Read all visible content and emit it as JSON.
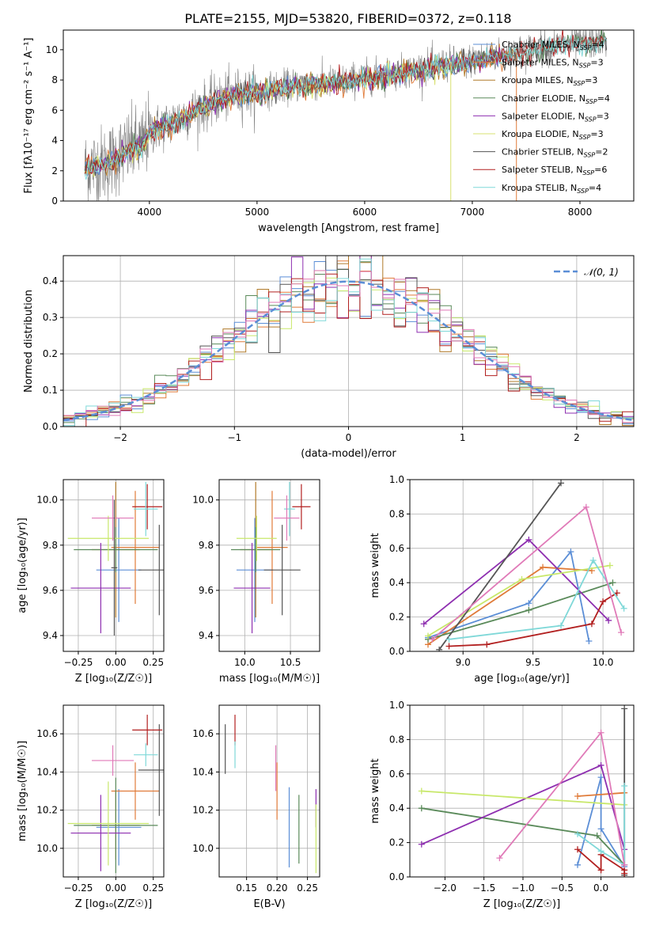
{
  "figure_title": "PLATE=2155, MJD=53820, FIBERID=0372, z=0.118",
  "colors": {
    "chabrier_miles": "#5b8ed6",
    "salpeter_miles": "#e07b39",
    "kroupa_miles": "#b07a2a",
    "chabrier_elodie": "#5a8a5a",
    "salpeter_elodie": "#8e2fb0",
    "kroupa_elodie": "#d8e070",
    "chabrier_stelib": "#555555",
    "salpeter_stelib": "#b22020",
    "kroupa_stelib": "#7fd8d8",
    "pink": "#e07ab8",
    "lime": "#c8e86a",
    "data_gray": "#808080",
    "gauss": "#5b8ed6"
  },
  "chart_data": [
    {
      "id": "spectrum",
      "type": "line",
      "title": "PLATE=2155, MJD=53820, FIBERID=0372, z=0.118",
      "xlabel": "wavelength [Angstrom, rest frame]",
      "ylabel": "Flux [fλ10⁻¹⁷ erg cm⁻² s⁻¹ A⁻¹]",
      "xlim": [
        3200,
        8500
      ],
      "ylim": [
        0,
        11.3
      ],
      "xticks": [
        4000,
        5000,
        6000,
        7000,
        8000
      ],
      "yticks": [
        0,
        2,
        4,
        6,
        8,
        10
      ],
      "legend_position": "right",
      "legend": [
        "Chabrier MILES, N_SSP=4",
        "Salpeter MILES, N_SSP=3",
        "Kroupa MILES, N_SSP=3",
        "Chabrier ELODIE, N_SSP=4",
        "Salpeter ELODIE, N_SSP=3",
        "Kroupa ELODIE, N_SSP=3",
        "Chabrier STELIB, N_SSP=2",
        "Salpeter STELIB, N_SSP=6",
        "Kroupa STELIB, N_SSP=4"
      ],
      "continuum": [
        [
          3400,
          2.2
        ],
        [
          3600,
          2.5
        ],
        [
          3800,
          3.4
        ],
        [
          3950,
          3.8
        ],
        [
          4000,
          4.6
        ],
        [
          4200,
          5.2
        ],
        [
          4400,
          5.9
        ],
        [
          4600,
          6.6
        ],
        [
          4800,
          7.1
        ],
        [
          5000,
          7.2
        ],
        [
          5200,
          7.5
        ],
        [
          5400,
          7.7
        ],
        [
          5600,
          7.8
        ],
        [
          5800,
          7.9
        ],
        [
          6000,
          8.2
        ],
        [
          6200,
          8.4
        ],
        [
          6400,
          8.6
        ],
        [
          6600,
          8.9
        ],
        [
          6800,
          9.1
        ],
        [
          7000,
          9.3
        ],
        [
          7200,
          9.6
        ],
        [
          7400,
          9.8
        ],
        [
          7600,
          10.1
        ],
        [
          7800,
          10.3
        ],
        [
          8000,
          10.4
        ],
        [
          8200,
          10.6
        ]
      ]
    },
    {
      "id": "residuals",
      "type": "line",
      "xlabel": "(data-model)/error",
      "ylabel": "Normed distribution",
      "xlim": [
        -2.5,
        2.5
      ],
      "ylim": [
        0,
        0.47
      ],
      "xticks": [
        -2,
        -1,
        0,
        1,
        2
      ],
      "yticks": [
        0.0,
        0.1,
        0.2,
        0.3,
        0.4
      ],
      "grid": true,
      "legend_position": "top-right",
      "legend": [
        "𝒩(0, 1)"
      ]
    },
    {
      "id": "age_vs_Z",
      "type": "scatter",
      "xlabel": "Z [log₁₀(Z/Z☉)]",
      "ylabel": "age  [log₁₀(age/yr)]",
      "xlim": [
        -0.35,
        0.32
      ],
      "ylim": [
        9.33,
        10.09
      ],
      "xticks": [
        -0.25,
        0.0,
        0.25
      ],
      "yticks": [
        9.4,
        9.6,
        9.8,
        10.0
      ],
      "grid": true,
      "points": [
        {
          "c": "chabrier_miles",
          "x": 0.02,
          "y": 9.69,
          "ex": 0.15,
          "ey": 0.23
        },
        {
          "c": "salpeter_miles",
          "x": 0.13,
          "y": 9.79,
          "ex": 0.16,
          "ey": 0.25
        },
        {
          "c": "kroupa_miles",
          "x": 0.0,
          "y": 9.78,
          "ex": 0.16,
          "ey": 0.3
        },
        {
          "c": "chabrier_elodie",
          "x": 0.0,
          "y": 9.78,
          "ex": 0.28,
          "ey": 0.1
        },
        {
          "c": "salpeter_elodie",
          "x": -0.1,
          "y": 9.61,
          "ex": 0.2,
          "ey": 0.2
        },
        {
          "c": "lime",
          "x": -0.05,
          "y": 9.83,
          "ex": 0.27,
          "ey": 0.1
        },
        {
          "c": "chabrier_stelib",
          "x": 0.29,
          "y": 9.69,
          "ex": 0.14,
          "ey": 0.2
        },
        {
          "c": "salpeter_stelib",
          "x": 0.21,
          "y": 9.97,
          "ex": 0.1,
          "ey": 0.1
        },
        {
          "c": "kroupa_stelib",
          "x": 0.2,
          "y": 9.96,
          "ex": 0.08,
          "ey": 0.12
        },
        {
          "c": "pink",
          "x": -0.02,
          "y": 9.92,
          "ex": 0.14,
          "ey": 0.1
        },
        {
          "c": "chabrier_stelib",
          "x": -0.01,
          "y": 9.7,
          "ex": 0.02,
          "ey": 0.3
        }
      ]
    },
    {
      "id": "age_vs_mass",
      "type": "scatter",
      "xlabel": "mass [log₁₀(M/M☉)]",
      "xlim": [
        9.72,
        10.82
      ],
      "ylim": [
        9.33,
        10.09
      ],
      "xticks": [
        10.0,
        10.5
      ],
      "yticks": [
        9.4,
        9.6,
        9.8,
        10.0
      ],
      "grid": true,
      "points": [
        {
          "c": "chabrier_miles",
          "x": 10.11,
          "y": 9.69,
          "ex": 0.2,
          "ey": 0.23
        },
        {
          "c": "salpeter_miles",
          "x": 10.3,
          "y": 9.79,
          "ex": 0.17,
          "ey": 0.25
        },
        {
          "c": "kroupa_miles",
          "x": 10.12,
          "y": 9.78,
          "ex": 0.17,
          "ey": 0.3
        },
        {
          "c": "chabrier_elodie",
          "x": 10.12,
          "y": 9.78,
          "ex": 0.27,
          "ey": 0.1
        },
        {
          "c": "salpeter_elodie",
          "x": 10.08,
          "y": 9.61,
          "ex": 0.2,
          "ey": 0.2
        },
        {
          "c": "lime",
          "x": 10.13,
          "y": 9.83,
          "ex": 0.22,
          "ey": 0.1
        },
        {
          "c": "chabrier_stelib",
          "x": 10.41,
          "y": 9.69,
          "ex": 0.2,
          "ey": 0.2
        },
        {
          "c": "salpeter_stelib",
          "x": 10.62,
          "y": 9.97,
          "ex": 0.1,
          "ey": 0.1
        },
        {
          "c": "kroupa_stelib",
          "x": 10.49,
          "y": 9.96,
          "ex": 0.06,
          "ey": 0.12
        },
        {
          "c": "pink",
          "x": 10.46,
          "y": 9.92,
          "ex": 0.14,
          "ey": 0.1
        }
      ]
    },
    {
      "id": "weight_vs_age",
      "type": "line",
      "xlabel": "age  [log₁₀(age/yr)]",
      "ylabel": "mass weight",
      "xlim": [
        8.62,
        10.22
      ],
      "ylim": [
        0.0,
        1.0
      ],
      "xticks": [
        9.0,
        9.5,
        10.0
      ],
      "yticks": [
        0.0,
        0.2,
        0.4,
        0.6,
        0.8,
        1.0
      ],
      "grid": true,
      "series": [
        {
          "c": "chabrier_miles",
          "x": [
            8.75,
            9.47,
            9.77,
            9.9
          ],
          "y": [
            0.08,
            0.28,
            0.58,
            0.06
          ]
        },
        {
          "c": "salpeter_miles",
          "x": [
            8.75,
            9.57,
            9.92
          ],
          "y": [
            0.04,
            0.49,
            0.47
          ]
        },
        {
          "c": "chabrier_elodie",
          "x": [
            8.75,
            9.47,
            10.07
          ],
          "y": [
            0.07,
            0.24,
            0.4
          ]
        },
        {
          "c": "salpeter_elodie",
          "x": [
            8.72,
            9.47,
            10.04
          ],
          "y": [
            0.16,
            0.65,
            0.18
          ]
        },
        {
          "c": "lime",
          "x": [
            8.75,
            9.42,
            10.05
          ],
          "y": [
            0.09,
            0.42,
            0.5
          ]
        },
        {
          "c": "chabrier_stelib",
          "x": [
            8.83,
            9.7
          ],
          "y": [
            0.01,
            0.98
          ]
        },
        {
          "c": "salpeter_stelib",
          "x": [
            8.9,
            9.17,
            9.92,
            10.0,
            10.1
          ],
          "y": [
            0.03,
            0.04,
            0.16,
            0.29,
            0.34
          ]
        },
        {
          "c": "kroupa_stelib",
          "x": [
            8.9,
            9.7,
            9.93,
            10.15
          ],
          "y": [
            0.07,
            0.15,
            0.53,
            0.25
          ]
        },
        {
          "c": "pink",
          "x": [
            8.78,
            9.88,
            10.13
          ],
          "y": [
            0.07,
            0.84,
            0.11
          ]
        }
      ]
    },
    {
      "id": "mass_vs_Z",
      "type": "scatter",
      "xlabel": "Z [log₁₀(Z/Z☉)]",
      "ylabel": "mass [log₁₀(M/M☉)]",
      "xlim": [
        -0.35,
        0.32
      ],
      "ylim": [
        9.85,
        10.75
      ],
      "xticks": [
        -0.25,
        0.0,
        0.25
      ],
      "yticks": [
        10.0,
        10.2,
        10.4,
        10.6
      ],
      "grid": true,
      "points": [
        {
          "c": "chabrier_miles",
          "x": 0.02,
          "y": 10.11,
          "ex": 0.15,
          "ey": 0.2
        },
        {
          "c": "salpeter_miles",
          "x": 0.13,
          "y": 10.3,
          "ex": 0.16,
          "ey": 0.15
        },
        {
          "c": "kroupa_miles",
          "x": 0.0,
          "y": 10.12,
          "ex": 0.16,
          "ey": 0.18
        },
        {
          "c": "chabrier_elodie",
          "x": 0.0,
          "y": 10.12,
          "ex": 0.28,
          "ey": 0.25
        },
        {
          "c": "salpeter_elodie",
          "x": -0.1,
          "y": 10.08,
          "ex": 0.2,
          "ey": 0.2
        },
        {
          "c": "lime",
          "x": -0.05,
          "y": 10.13,
          "ex": 0.27,
          "ey": 0.22
        },
        {
          "c": "chabrier_stelib",
          "x": 0.29,
          "y": 10.41,
          "ex": 0.14,
          "ey": 0.24
        },
        {
          "c": "salpeter_stelib",
          "x": 0.21,
          "y": 10.62,
          "ex": 0.1,
          "ey": 0.08
        },
        {
          "c": "kroupa_stelib",
          "x": 0.2,
          "y": 10.49,
          "ex": 0.08,
          "ey": 0.06
        },
        {
          "c": "pink",
          "x": -0.02,
          "y": 10.46,
          "ex": 0.14,
          "ey": 0.08
        }
      ]
    },
    {
      "id": "mass_vs_ebv",
      "type": "scatter",
      "xlabel": "E(B-V)",
      "xlim": [
        0.105,
        0.27
      ],
      "ylim": [
        9.85,
        10.75
      ],
      "xticks": [
        0.15,
        0.2,
        0.25
      ],
      "yticks": [
        10.0,
        10.2,
        10.4,
        10.6
      ],
      "grid": true,
      "points": [
        {
          "c": "chabrier_stelib",
          "x": 0.115,
          "y": 10.52,
          "ey": 0.13
        },
        {
          "c": "salpeter_stelib",
          "x": 0.131,
          "y": 10.62,
          "ey": 0.08
        },
        {
          "c": "kroupa_stelib",
          "x": 0.131,
          "y": 10.49,
          "ey": 0.07
        },
        {
          "c": "pink",
          "x": 0.198,
          "y": 10.42,
          "ey": 0.12
        },
        {
          "c": "salpeter_miles",
          "x": 0.2,
          "y": 10.3,
          "ey": 0.15
        },
        {
          "c": "chabrier_miles",
          "x": 0.22,
          "y": 10.11,
          "ey": 0.21
        },
        {
          "c": "chabrier_elodie",
          "x": 0.236,
          "y": 10.1,
          "ey": 0.18
        },
        {
          "c": "salpeter_elodie",
          "x": 0.264,
          "y": 10.21,
          "ey": 0.1
        },
        {
          "c": "lime",
          "x": 0.264,
          "y": 10.05,
          "ey": 0.18
        }
      ]
    },
    {
      "id": "weight_vs_Z",
      "type": "line",
      "xlabel": "Z [log₁₀(Z/Z☉)]",
      "ylabel": "mass weight",
      "xlim": [
        -2.45,
        0.42
      ],
      "ylim": [
        0.0,
        1.0
      ],
      "xticks": [
        -2.0,
        -1.5,
        -1.0,
        -0.5,
        0.0
      ],
      "yticks": [
        0.0,
        0.2,
        0.4,
        0.6,
        0.8,
        1.0
      ],
      "grid": true,
      "series": [
        {
          "c": "chabrier_miles",
          "x": [
            -0.3,
            0.0,
            0.0,
            0.3
          ],
          "y": [
            0.07,
            0.58,
            0.28,
            0.06
          ]
        },
        {
          "c": "salpeter_miles",
          "x": [
            -0.3,
            0.3
          ],
          "y": [
            0.47,
            0.49
          ]
        },
        {
          "c": "chabrier_elodie",
          "x": [
            -2.3,
            -0.05,
            0.3
          ],
          "y": [
            0.4,
            0.24,
            0.07
          ]
        },
        {
          "c": "salpeter_elodie",
          "x": [
            -2.3,
            0.0,
            0.3
          ],
          "y": [
            0.19,
            0.65,
            0.16
          ]
        },
        {
          "c": "lime",
          "x": [
            -2.3,
            0.3
          ],
          "y": [
            0.5,
            0.42
          ]
        },
        {
          "c": "chabrier_stelib",
          "x": [
            0.3,
            0.3
          ],
          "y": [
            0.01,
            0.98
          ]
        },
        {
          "c": "salpeter_stelib",
          "x": [
            -0.3,
            0.0,
            0.0,
            0.3,
            0.3
          ],
          "y": [
            0.16,
            0.04,
            0.13,
            0.04,
            0.02
          ]
        },
        {
          "c": "kroupa_stelib",
          "x": [
            -0.3,
            0.0,
            0.3,
            0.3
          ],
          "y": [
            0.25,
            0.15,
            0.07,
            0.53
          ]
        },
        {
          "c": "pink",
          "x": [
            -1.3,
            0.0,
            0.3
          ],
          "y": [
            0.11,
            0.84,
            0.07
          ]
        }
      ]
    }
  ]
}
